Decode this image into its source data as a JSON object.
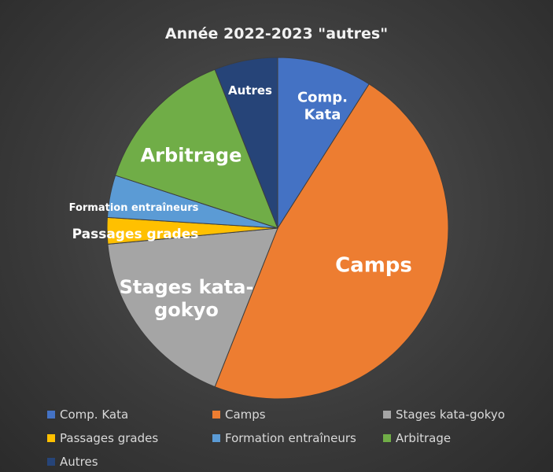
{
  "chart_data": {
    "type": "pie",
    "title": "Année 2022-2023 \"autres\"",
    "categories": [
      "Comp. Kata",
      "Camps",
      "Stages kata-gokyo",
      "Passages grades",
      "Formation entraîneurs",
      "Arbitrage",
      "Autres"
    ],
    "values": [
      9,
      47,
      17.5,
      2.5,
      4,
      14,
      6
    ],
    "colors": [
      "#4472c4",
      "#ed7d31",
      "#a5a5a5",
      "#ffc000",
      "#5b9bd5",
      "#70ad47",
      "#264478"
    ],
    "legend": "bottom"
  }
}
